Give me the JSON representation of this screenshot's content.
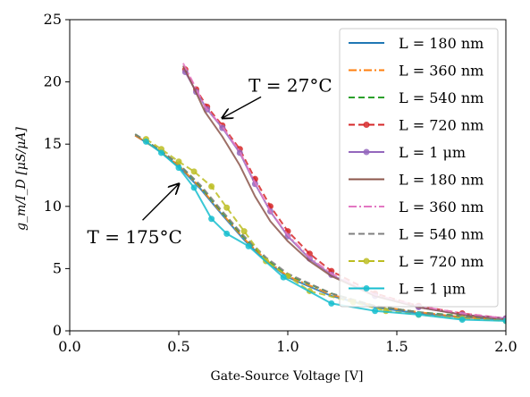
{
  "chart_data": {
    "type": "line",
    "title": "",
    "xlabel": "Gate-Source Voltage [V]",
    "ylabel": "g_m/I_D [μS/μA]",
    "xlim": [
      0.0,
      2.0
    ],
    "ylim": [
      0,
      25
    ],
    "xticks": [
      "0.0",
      "0.5",
      "1.0",
      "1.5",
      "2.0"
    ],
    "yticks": [
      "0",
      "5",
      "10",
      "15",
      "20",
      "25"
    ],
    "grid": false,
    "legend_position": "top-right",
    "annotations": [
      {
        "text": "T = 27°C",
        "x": 0.82,
        "y": 19.8,
        "arrow_to": [
          0.7,
          17.1
        ]
      },
      {
        "text": "T = 175°C",
        "x": 0.08,
        "y": 7.6,
        "arrow_to": [
          0.5,
          11.8
        ]
      }
    ],
    "series": [
      {
        "name": "L = 180 nm",
        "color": "#1f77b4",
        "style": "solid",
        "marker": false,
        "x": [
          0.3,
          0.4,
          0.5,
          0.6,
          0.7,
          0.8,
          0.9,
          1.0,
          1.2,
          1.4,
          1.6,
          1.8,
          2.0
        ],
        "y": [
          15.7,
          14.6,
          13.2,
          11.4,
          9.3,
          7.3,
          5.6,
          4.3,
          2.8,
          1.9,
          1.4,
          1.1,
          0.9
        ]
      },
      {
        "name": "L = 360 nm",
        "color": "#ff7f0e",
        "style": "dashdot",
        "marker": false,
        "x": [
          0.3,
          0.4,
          0.5,
          0.6,
          0.7,
          0.8,
          0.9,
          1.0,
          1.2,
          1.4,
          1.6,
          1.8,
          2.0
        ],
        "y": [
          15.7,
          14.6,
          13.3,
          11.5,
          9.4,
          7.4,
          5.7,
          4.4,
          2.9,
          2.0,
          1.5,
          1.1,
          0.9
        ]
      },
      {
        "name": "L = 540 nm",
        "color": "#2ca02c",
        "style": "dashed",
        "marker": false,
        "x": [
          0.3,
          0.4,
          0.5,
          0.6,
          0.7,
          0.8,
          0.9,
          1.0,
          1.2,
          1.4,
          1.6,
          1.8,
          2.0
        ],
        "y": [
          15.8,
          14.7,
          13.4,
          11.6,
          9.5,
          7.5,
          5.8,
          4.5,
          3.0,
          2.0,
          1.5,
          1.2,
          0.9
        ]
      },
      {
        "name": "L = 720 nm",
        "color": "#d62728",
        "style": "dashed",
        "marker": true,
        "x": [
          0.53,
          0.58,
          0.63,
          0.7,
          0.78,
          0.85,
          0.92,
          1.0,
          1.1,
          1.2,
          1.4,
          1.6,
          1.8,
          2.0
        ],
        "y": [
          21.0,
          19.4,
          18.0,
          16.5,
          14.6,
          12.2,
          10.0,
          8.0,
          6.2,
          4.8,
          3.0,
          2.0,
          1.4,
          1.0
        ]
      },
      {
        "name": "L = 1 μm",
        "color": "#9467bd",
        "style": "solid",
        "marker": true,
        "x": [
          0.53,
          0.58,
          0.63,
          0.7,
          0.78,
          0.85,
          0.92,
          1.0,
          1.1,
          1.2,
          1.4,
          1.6,
          1.8,
          2.0
        ],
        "y": [
          20.8,
          19.2,
          17.8,
          16.3,
          14.3,
          11.8,
          9.6,
          7.6,
          5.8,
          4.5,
          2.8,
          1.9,
          1.3,
          1.0
        ]
      },
      {
        "name": "L = 180 nm",
        "color": "#8c564b",
        "style": "solid",
        "marker": false,
        "x": [
          0.52,
          0.57,
          0.62,
          0.7,
          0.78,
          0.85,
          0.92,
          1.0,
          1.1,
          1.2,
          1.4,
          1.6,
          1.8,
          2.0
        ],
        "y": [
          21.3,
          19.5,
          17.6,
          15.6,
          13.3,
          10.8,
          8.8,
          7.2,
          5.6,
          4.4,
          2.8,
          1.9,
          1.3,
          0.9
        ]
      },
      {
        "name": "L = 360 nm",
        "color": "#e377c2",
        "style": "dashdot",
        "marker": false,
        "x": [
          0.52,
          0.57,
          0.62,
          0.7,
          0.78,
          0.85,
          0.92,
          1.0,
          1.1,
          1.2,
          1.4,
          1.6,
          1.8,
          2.0
        ],
        "y": [
          21.5,
          19.8,
          18.0,
          16.4,
          14.4,
          11.9,
          9.6,
          7.7,
          5.9,
          4.6,
          2.9,
          2.0,
          1.4,
          1.0
        ]
      },
      {
        "name": "L = 540 nm",
        "color": "#7f7f7f",
        "style": "dashed",
        "marker": false,
        "x": [
          0.3,
          0.4,
          0.5,
          0.6,
          0.7,
          0.8,
          0.9,
          1.0,
          1.2,
          1.4,
          1.6,
          1.8,
          2.0
        ],
        "y": [
          15.8,
          14.7,
          13.4,
          11.7,
          9.6,
          7.6,
          5.9,
          4.6,
          3.0,
          2.0,
          1.5,
          1.1,
          0.9
        ]
      },
      {
        "name": "L = 720 nm",
        "color": "#bcbd22",
        "style": "dashed",
        "marker": true,
        "x": [
          0.35,
          0.42,
          0.5,
          0.57,
          0.65,
          0.72,
          0.8,
          0.9,
          1.0,
          1.1,
          1.3,
          1.45,
          1.6,
          1.8,
          2.0
        ],
        "y": [
          15.4,
          14.6,
          13.6,
          12.8,
          11.6,
          9.9,
          8.0,
          5.6,
          4.4,
          3.2,
          2.3,
          1.6,
          1.3,
          1.0,
          0.8
        ]
      },
      {
        "name": "L = 1 μm",
        "color": "#17becf",
        "style": "solid",
        "marker": true,
        "x": [
          0.35,
          0.42,
          0.5,
          0.57,
          0.65,
          0.72,
          0.82,
          0.98,
          1.2,
          1.4,
          1.6,
          1.8,
          2.0
        ],
        "y": [
          15.2,
          14.3,
          13.1,
          11.5,
          9.0,
          7.8,
          6.8,
          4.3,
          2.2,
          1.6,
          1.3,
          0.9,
          0.8
        ]
      }
    ]
  }
}
